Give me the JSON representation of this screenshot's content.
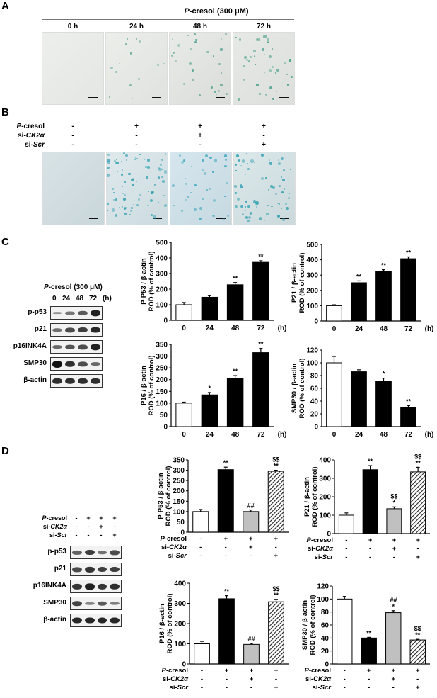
{
  "panels": {
    "A": {
      "letter": "A",
      "title_italic": "P",
      "title_rest": "-cresol (300 μM)",
      "timepoints": [
        "0 h",
        "24 h",
        "48 h",
        "72 h"
      ],
      "image_desc": "SA-β-gal staining micrographs with scale bars"
    },
    "B": {
      "letter": "B",
      "conditions": [
        {
          "label_italic_prefix": "P",
          "label_rest": "-cresol",
          "values": [
            "-",
            "+",
            "+",
            "+"
          ]
        },
        {
          "label_prefix": "si-",
          "label_italic": "CK2α",
          "values": [
            "-",
            "-",
            "+",
            "-"
          ]
        },
        {
          "label_prefix": "si-",
          "label_italic": "Scr",
          "values": [
            "-",
            "-",
            "-",
            "+"
          ]
        }
      ]
    },
    "C": {
      "letter": "C",
      "blot_title_italic": "P",
      "blot_title_rest": "-cresol (300 μM)",
      "blot_lanes": [
        "0",
        "24",
        "48",
        "72",
        "(h)"
      ],
      "blot_rows": [
        "p-p53",
        "p21",
        "p16INK4A",
        "SMP30",
        "β-actin"
      ]
    },
    "D": {
      "letter": "D",
      "conditions": [
        {
          "label_italic_prefix": "P",
          "label_rest": "-cresol",
          "values": [
            "-",
            "+",
            "+",
            "+"
          ]
        },
        {
          "label_prefix": "si-",
          "label_italic": "CK2α",
          "values": [
            "-",
            "-",
            "+",
            "-"
          ]
        },
        {
          "label_prefix": "si-",
          "label_italic": "Scr",
          "values": [
            "-",
            "-",
            "-",
            "+"
          ]
        }
      ],
      "blot_rows": [
        "p-p53",
        "p21",
        "p16INK4A",
        "SMP30",
        "β-actin"
      ]
    }
  },
  "chart_data": [
    {
      "id": "C1",
      "type": "bar",
      "title": "",
      "ylabel": "P-P53 / β-actin ROD (% of control)",
      "xlabel": "(h)",
      "categories": [
        "0",
        "24",
        "48",
        "72"
      ],
      "values": [
        100,
        148,
        228,
        372
      ],
      "errors": [
        14,
        10,
        14,
        10
      ],
      "ylim": [
        0,
        500
      ],
      "yticks": [
        0,
        100,
        200,
        300,
        400,
        500
      ],
      "significance": [
        "",
        "",
        "**",
        "**"
      ],
      "bar_styles": [
        "white",
        "black",
        "black",
        "black"
      ]
    },
    {
      "id": "C2",
      "type": "bar",
      "title": "",
      "ylabel": "P21 / β-actin ROD (% of control)",
      "xlabel": "(h)",
      "categories": [
        "0",
        "24",
        "48",
        "72"
      ],
      "values": [
        100,
        250,
        325,
        407
      ],
      "errors": [
        6,
        12,
        10,
        12
      ],
      "ylim": [
        0,
        500
      ],
      "yticks": [
        0,
        100,
        200,
        300,
        400,
        500
      ],
      "significance": [
        "",
        "**",
        "**",
        "**"
      ],
      "bar_styles": [
        "white",
        "black",
        "black",
        "black"
      ]
    },
    {
      "id": "C3",
      "type": "bar",
      "title": "",
      "ylabel": "P16 / β-actin ROD (% of control)",
      "xlabel": "(h)",
      "categories": [
        "0",
        "24",
        "48",
        "72"
      ],
      "values": [
        100,
        135,
        205,
        315
      ],
      "errors": [
        4,
        10,
        12,
        18
      ],
      "ylim": [
        0,
        350
      ],
      "yticks": [
        0,
        50,
        100,
        150,
        200,
        250,
        300,
        350
      ],
      "significance": [
        "",
        "*",
        "**",
        "**"
      ],
      "bar_styles": [
        "white",
        "black",
        "black",
        "black"
      ]
    },
    {
      "id": "C4",
      "type": "bar",
      "title": "",
      "ylabel": "SMP30 / β-actin ROD (% of control)",
      "xlabel": "(h)",
      "categories": [
        "0",
        "24",
        "48",
        "72"
      ],
      "values": [
        100,
        86,
        71,
        30
      ],
      "errors": [
        10,
        3,
        5,
        3
      ],
      "ylim": [
        0,
        120
      ],
      "yticks": [
        0,
        20,
        40,
        60,
        80,
        100,
        120
      ],
      "significance": [
        "",
        "",
        "*",
        "**"
      ],
      "bar_styles": [
        "white",
        "black",
        "black",
        "black"
      ]
    },
    {
      "id": "D1",
      "type": "bar",
      "title": "",
      "ylabel": "P-P53 / β-actin ROD (% of control)",
      "categories": [
        "ctrl",
        "P-cresol",
        "P-cresol+si-CK2α",
        "P-cresol+si-Scr"
      ],
      "values": [
        100,
        303,
        100,
        295
      ],
      "errors": [
        10,
        12,
        8,
        5
      ],
      "ylim": [
        0,
        350
      ],
      "yticks": [
        0,
        50,
        100,
        150,
        200,
        250,
        300,
        350
      ],
      "significance": [
        "",
        "**",
        "##",
        "$$\n**"
      ],
      "bar_styles": [
        "white",
        "black",
        "gray",
        "hatched"
      ]
    },
    {
      "id": "D2",
      "type": "bar",
      "title": "",
      "ylabel": "P21 / β-actin ROD (% of control)",
      "categories": [
        "ctrl",
        "P-cresol",
        "P-cresol+si-CK2α",
        "P-cresol+si-Scr"
      ],
      "values": [
        100,
        347,
        135,
        335
      ],
      "errors": [
        12,
        22,
        10,
        25
      ],
      "ylim": [
        0,
        400
      ],
      "yticks": [
        0,
        100,
        200,
        300,
        400
      ],
      "significance": [
        "",
        "**",
        "$$\n*",
        "$$\n**"
      ],
      "bar_styles": [
        "white",
        "black",
        "gray",
        "hatched"
      ]
    },
    {
      "id": "D3",
      "type": "bar",
      "title": "",
      "ylabel": "P16 / β-actin ROD (% of control)",
      "categories": [
        "ctrl",
        "P-cresol",
        "P-cresol+si-CK2α",
        "P-cresol+si-Scr"
      ],
      "values": [
        100,
        323,
        97,
        308
      ],
      "errors": [
        12,
        15,
        5,
        12
      ],
      "ylim": [
        0,
        400
      ],
      "yticks": [
        0,
        100,
        200,
        300,
        400
      ],
      "significance": [
        "",
        "**",
        "##",
        "$$\n**"
      ],
      "bar_styles": [
        "white",
        "black",
        "gray",
        "hatched"
      ]
    },
    {
      "id": "D4",
      "type": "bar",
      "title": "",
      "ylabel": "SMP30 / β-actin ROD (% of control)",
      "categories": [
        "ctrl",
        "P-cresol",
        "P-cresol+si-CK2α",
        "P-cresol+si-Scr"
      ],
      "values": [
        100,
        40,
        79,
        37
      ],
      "errors": [
        4,
        1,
        3,
        1
      ],
      "ylim": [
        0,
        120
      ],
      "yticks": [
        0,
        20,
        40,
        60,
        80,
        100,
        120
      ],
      "significance": [
        "",
        "**",
        "##\n*",
        "$$\n**"
      ],
      "bar_styles": [
        "white",
        "black",
        "gray",
        "hatched"
      ]
    }
  ]
}
